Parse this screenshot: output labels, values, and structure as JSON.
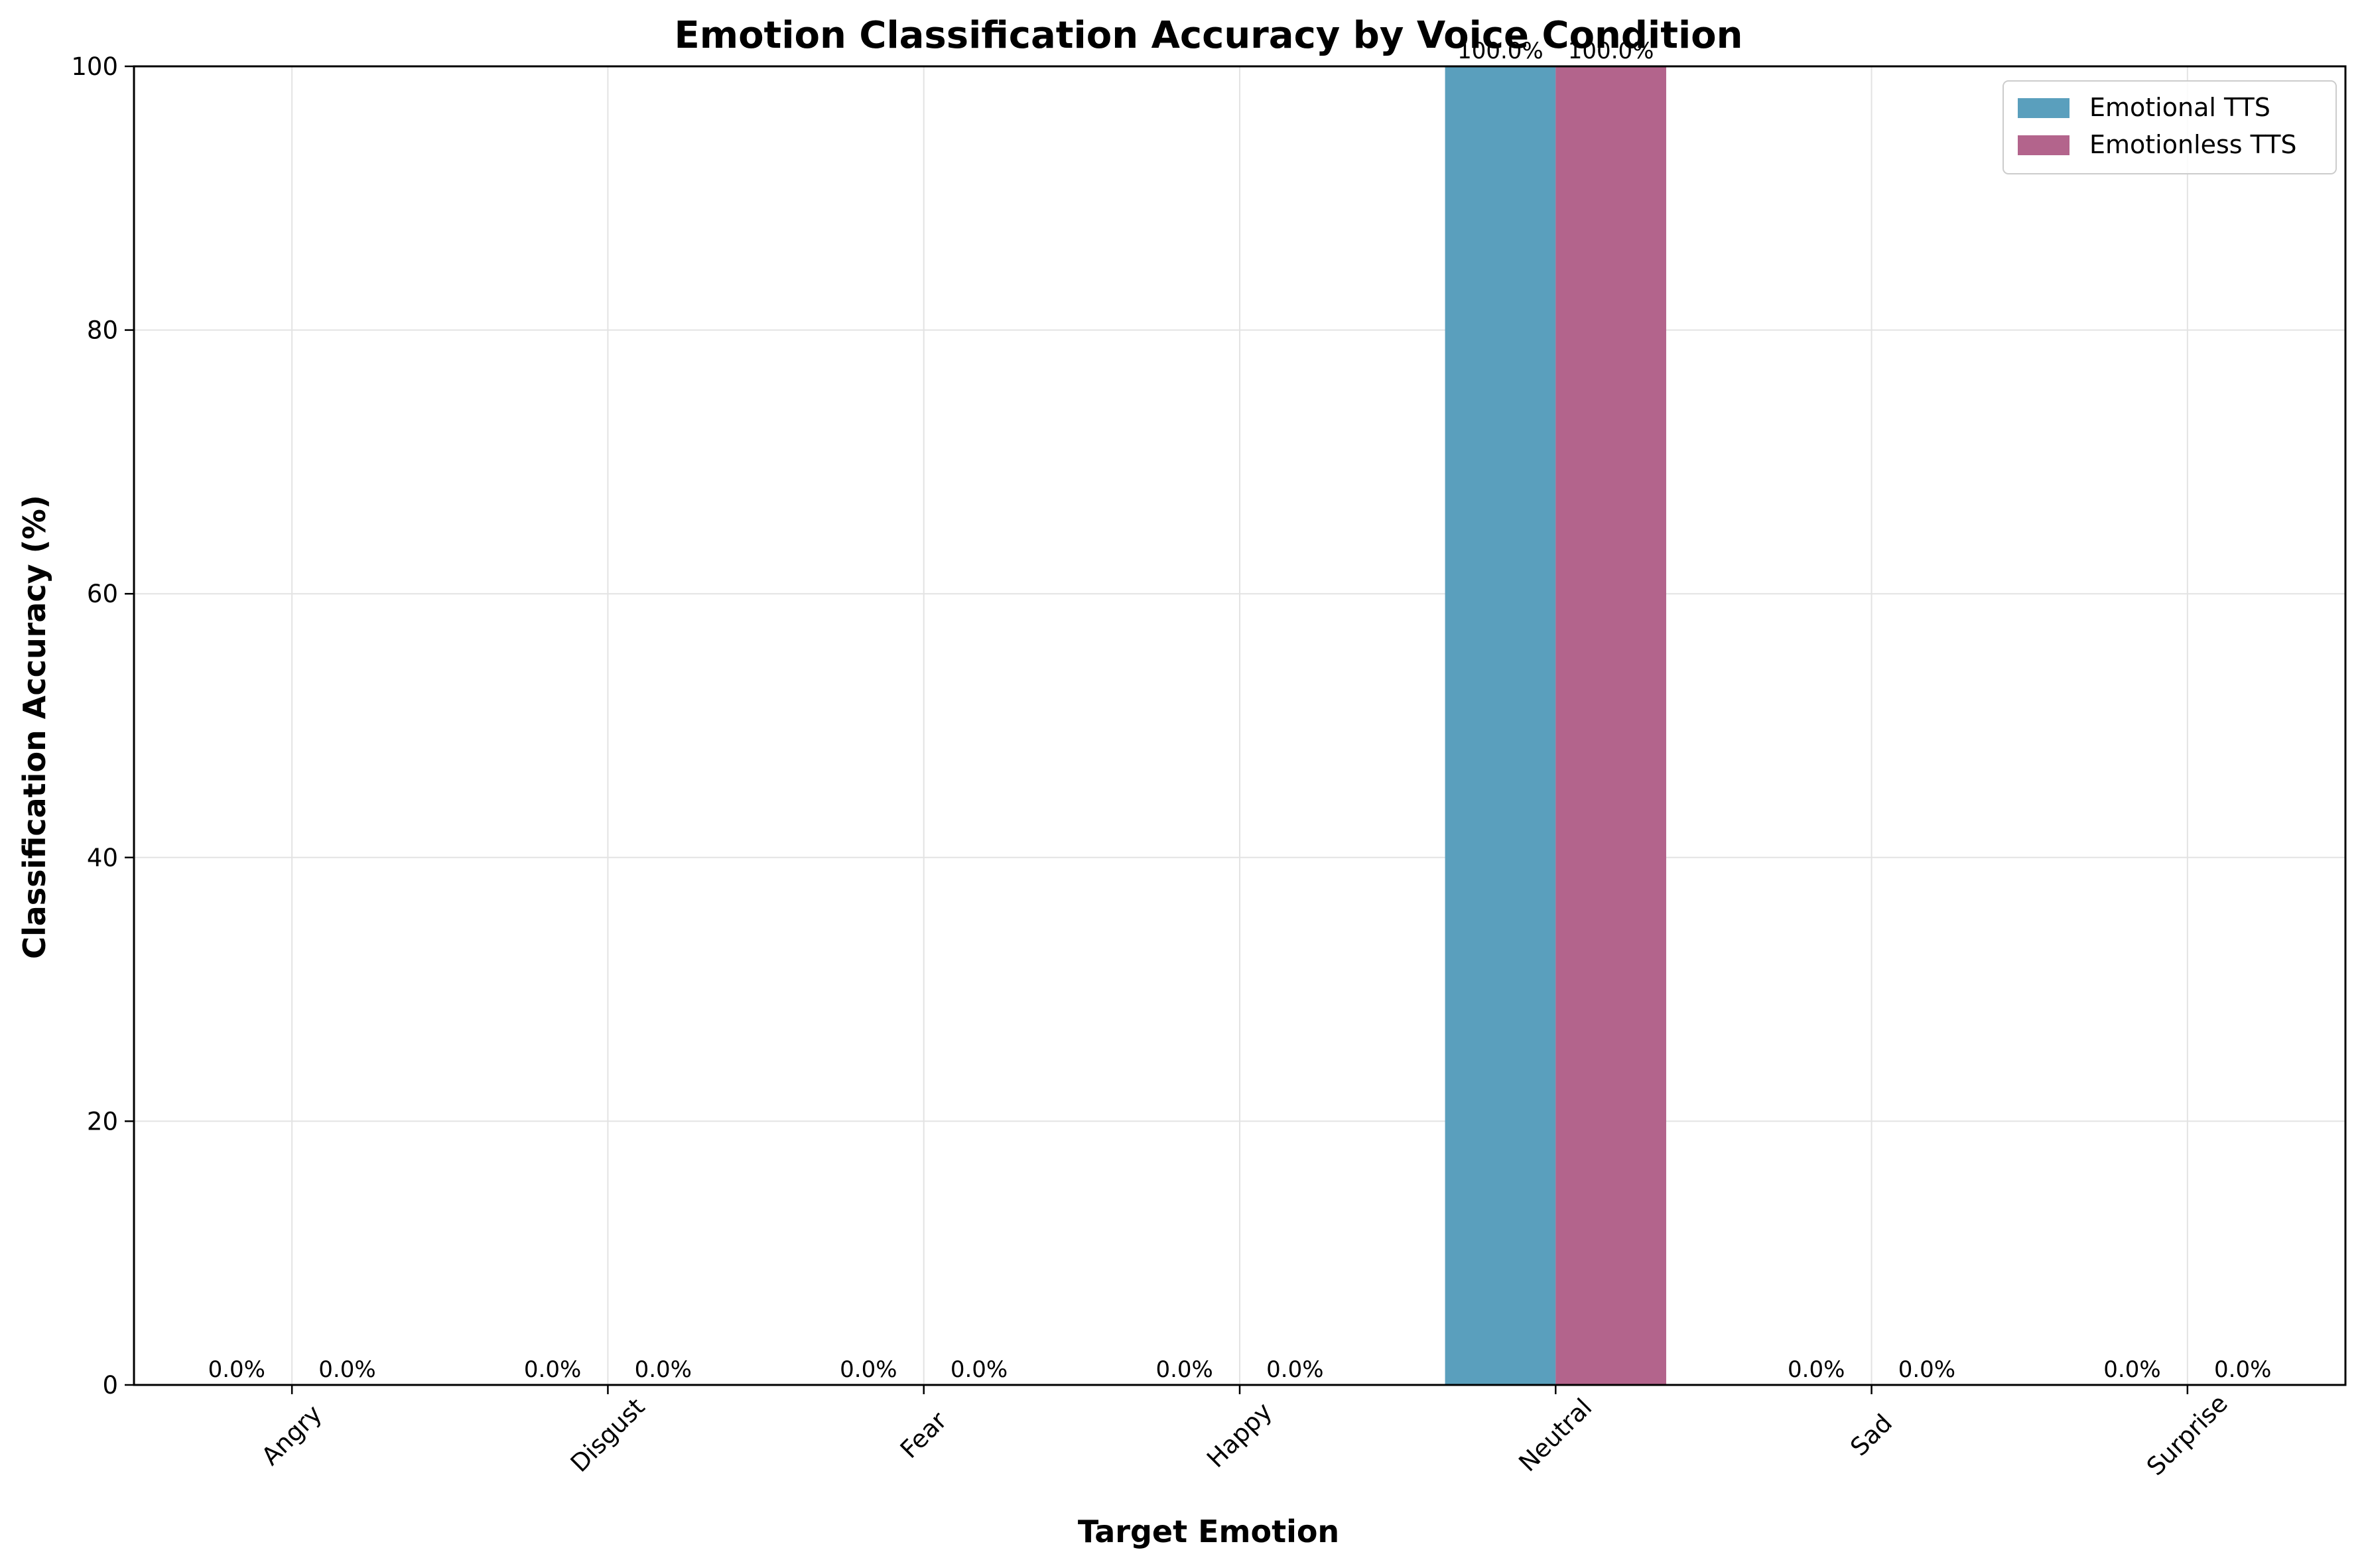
{
  "chart_data": {
    "type": "bar",
    "title": "Emotion Classification Accuracy by Voice Condition",
    "xlabel": "Target Emotion",
    "ylabel": "Classification Accuracy (%)",
    "categories": [
      "Angry",
      "Disgust",
      "Fear",
      "Happy",
      "Neutral",
      "Sad",
      "Surprise"
    ],
    "series": [
      {
        "name": "Emotional TTS",
        "color": "#5a9fbd",
        "values": [
          0,
          0,
          0,
          0,
          100,
          0,
          0
        ],
        "labels": [
          "0.0%",
          "0.0%",
          "0.0%",
          "0.0%",
          "100.0%",
          "0.0%",
          "0.0%"
        ]
      },
      {
        "name": "Emotionless TTS",
        "color": "#b3648c",
        "values": [
          0,
          0,
          0,
          0,
          100,
          0,
          0
        ],
        "labels": [
          "0.0%",
          "0.0%",
          "0.0%",
          "0.0%",
          "100.0%",
          "0.0%",
          "0.0%"
        ]
      }
    ],
    "ylim": [
      0,
      100
    ],
    "yticks": [
      0,
      20,
      40,
      60,
      80,
      100
    ],
    "grid": true,
    "legend_position": "upper right"
  }
}
